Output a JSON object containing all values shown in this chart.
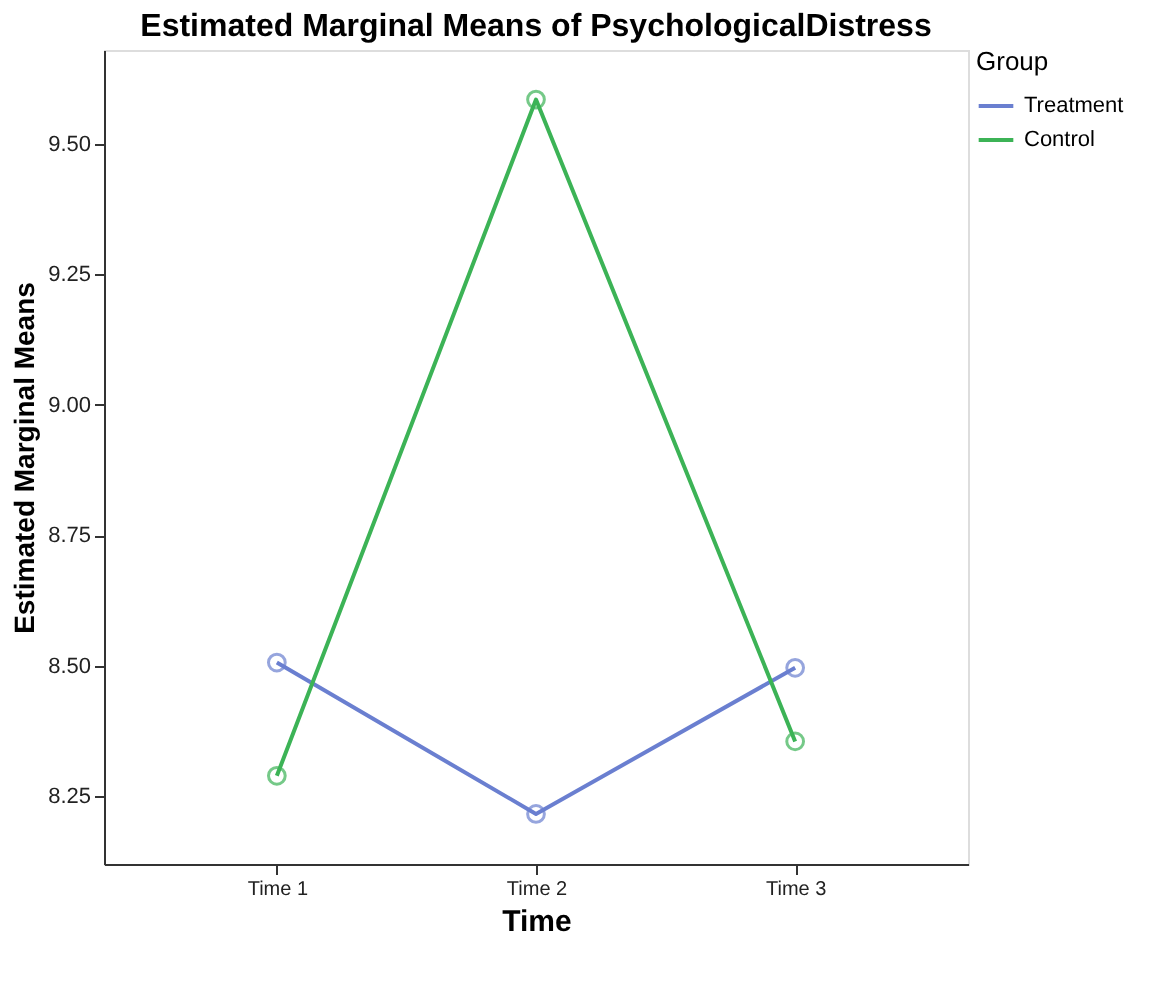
{
  "chart_data": {
    "type": "line",
    "title": "Estimated Marginal Means of PsychologicalDistress",
    "xlabel": "Time",
    "ylabel": "Estimated Marginal Means",
    "legend_title": "Group",
    "categories": [
      "Time 1",
      "Time 2",
      "Time 3"
    ],
    "series": [
      {
        "name": "Treatment",
        "color": "#6a7fd0",
        "values": [
          8.506,
          8.216,
          8.496
        ]
      },
      {
        "name": "Control",
        "color": "#3cb356",
        "values": [
          8.289,
          9.585,
          8.355
        ]
      }
    ],
    "ylim": [
      8.12,
      9.68
    ],
    "yticks": [
      8.25,
      {
        "value": 8.5,
        "label": "8.50"
      },
      8.75,
      {
        "value": 9.0,
        "label": "9.00"
      },
      9.25,
      {
        "value": 9.5,
        "label": "9.50"
      }
    ],
    "grid": false,
    "legend": "top right",
    "marker": "circle",
    "line_style": "solid"
  }
}
